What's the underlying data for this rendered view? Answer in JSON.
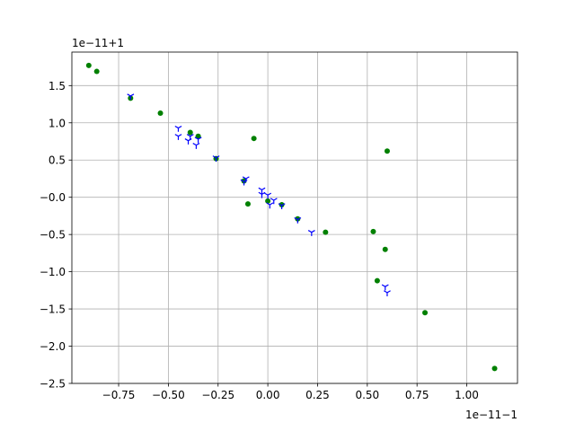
{
  "chart_data": {
    "type": "scatter",
    "title": "",
    "xlabel": "",
    "ylabel": "",
    "x_offset_label": "1e−11−1",
    "y_offset_label": "1e−11+1",
    "xlim": [
      -0.985,
      1.255
    ],
    "ylim": [
      -2.5,
      1.95
    ],
    "grid": true,
    "x_ticks": [
      -0.75,
      -0.5,
      -0.25,
      0.0,
      0.25,
      0.5,
      0.75,
      1.0
    ],
    "x_tick_labels": [
      "−0.75",
      "−0.50",
      "−0.25",
      "0.00",
      "0.25",
      "0.50",
      "0.75",
      "1.00"
    ],
    "y_ticks": [
      -2.5,
      -2.0,
      -1.5,
      -1.0,
      -0.5,
      0.0,
      0.5,
      1.0,
      1.5
    ],
    "y_tick_labels": [
      "−2.5",
      "−2.0",
      "−1.5",
      "−1.0",
      "−0.5",
      "−0.0",
      "0.5",
      "1.0",
      "1.5"
    ],
    "series": [
      {
        "marker": "circle",
        "color": "#008000",
        "points": [
          [
            -0.9,
            1.77
          ],
          [
            -0.86,
            1.69
          ],
          [
            -0.69,
            1.33
          ],
          [
            -0.54,
            1.13
          ],
          [
            -0.39,
            0.87
          ],
          [
            -0.35,
            0.82
          ],
          [
            -0.26,
            0.52
          ],
          [
            -0.07,
            0.79
          ],
          [
            -0.1,
            -0.09
          ],
          [
            -0.12,
            0.22
          ],
          [
            0.0,
            -0.05
          ],
          [
            0.07,
            -0.1
          ],
          [
            0.15,
            -0.29
          ],
          [
            0.29,
            -0.47
          ],
          [
            0.53,
            -0.46
          ],
          [
            0.59,
            -0.7
          ],
          [
            0.6,
            0.62
          ],
          [
            0.55,
            -1.12
          ],
          [
            0.79,
            -1.55
          ],
          [
            1.14,
            -2.3
          ]
        ]
      },
      {
        "marker": "tri_down",
        "color": "#0000ff",
        "points": [
          [
            -0.69,
            1.36
          ],
          [
            -0.45,
            0.93
          ],
          [
            -0.45,
            0.82
          ],
          [
            -0.4,
            0.76
          ],
          [
            -0.39,
            0.82
          ],
          [
            -0.36,
            0.7
          ],
          [
            -0.35,
            0.78
          ],
          [
            -0.26,
            0.53
          ],
          [
            -0.12,
            0.21
          ],
          [
            -0.11,
            0.25
          ],
          [
            -0.03,
            0.1
          ],
          [
            -0.03,
            0.04
          ],
          [
            0.0,
            0.03
          ],
          [
            0.01,
            -0.1
          ],
          [
            0.03,
            -0.04
          ],
          [
            0.07,
            -0.11
          ],
          [
            0.15,
            -0.3
          ],
          [
            0.22,
            -0.47
          ],
          [
            0.59,
            -1.2
          ],
          [
            0.6,
            -1.28
          ]
        ]
      }
    ]
  }
}
